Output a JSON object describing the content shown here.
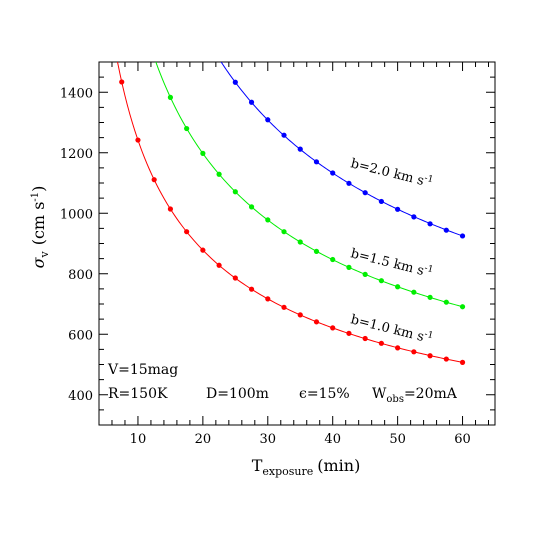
{
  "chart_data": {
    "type": "scatter",
    "title": "",
    "xlabel": {
      "main": "T",
      "sub": "exposure",
      "unit": "(min)"
    },
    "ylabel": {
      "main": "σ",
      "sub": "v",
      "unit_prefix": "(cm s",
      "unit_exp": "-1",
      "unit_suffix": ")"
    },
    "xlim": [
      4,
      65
    ],
    "ylim": [
      300,
      1500
    ],
    "xticks": [
      10,
      20,
      30,
      40,
      50,
      60
    ],
    "yticks": [
      400,
      600,
      800,
      1000,
      1200,
      1400
    ],
    "grid": false,
    "series": [
      {
        "name": "b=2.0 km s-1",
        "label_main": "b=2.0 km s",
        "label_exp": "-1",
        "color": "#0000ff",
        "x": [
          25,
          27.5,
          30,
          32.5,
          35,
          37.5,
          40,
          42.5,
          45,
          47.5,
          50,
          52.5,
          55,
          57.5,
          60
        ],
        "y": [
          1433,
          1367,
          1309,
          1258,
          1212,
          1170,
          1133,
          1099,
          1068,
          1039,
          1013,
          988,
          965,
          944,
          925
        ]
      },
      {
        "name": "b=1.5 km s-1",
        "label_main": "b=1.5 km s",
        "label_exp": "-1",
        "color": "#00ee00",
        "x": [
          15,
          17.5,
          20,
          22.5,
          25,
          27.5,
          30,
          32.5,
          35,
          37.5,
          40,
          42.5,
          45,
          47.5,
          50,
          52.5,
          55,
          57.5,
          60
        ],
        "y": [
          1383,
          1280,
          1198,
          1129,
          1071,
          1021,
          978,
          939,
          905,
          874,
          847,
          821,
          798,
          777,
          757,
          739,
          722,
          706,
          691
        ]
      },
      {
        "name": "b=1.0 km s-1",
        "label_main": "b=1.0 km s",
        "label_exp": "-1",
        "color": "#ff0000",
        "x": [
          7.5,
          10,
          12.5,
          15,
          17.5,
          20,
          22.5,
          25,
          27.5,
          30,
          32.5,
          35,
          37.5,
          40,
          42.5,
          45,
          47.5,
          50,
          52.5,
          55,
          57.5,
          60
        ],
        "y": [
          1434,
          1242,
          1111,
          1014,
          939,
          878,
          828,
          786,
          749,
          717,
          689,
          664,
          641,
          621,
          603,
          586,
          570,
          555,
          542,
          529,
          518,
          507
        ]
      }
    ],
    "annotations": {
      "vmag": "V=15mag",
      "res": "R=150K",
      "diam": "D=100m",
      "eff_main": "ϵ=15%",
      "wobs_main": "W",
      "wobs_sub": "obs",
      "wobs_val": "=20mA"
    }
  }
}
